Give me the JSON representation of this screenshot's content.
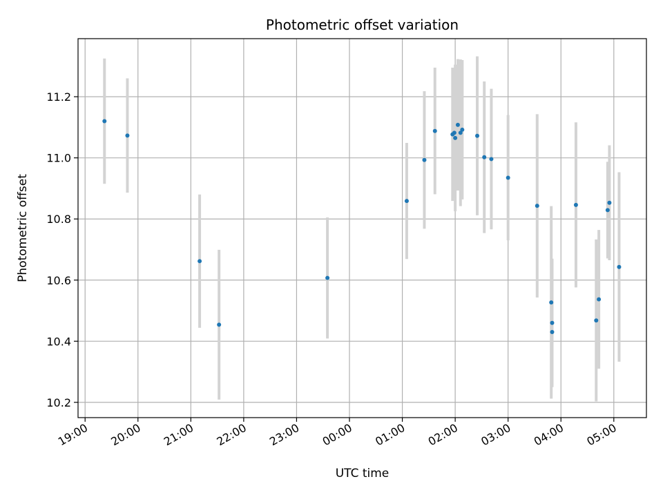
{
  "chart_data": {
    "type": "scatter",
    "title": "Photometric offset variation",
    "xlabel": "UTC time",
    "ylabel": "Photometric offset",
    "x_ticks": [
      "19:00",
      "20:00",
      "21:00",
      "22:00",
      "23:00",
      "00:00",
      "01:00",
      "02:00",
      "03:00",
      "04:00",
      "05:00"
    ],
    "x_range": [
      "18:52",
      "05:37"
    ],
    "y_ticks": [
      "10.2",
      "10.4",
      "10.6",
      "10.8",
      "11.0",
      "11.2"
    ],
    "ylim": [
      10.15,
      11.39
    ],
    "grid": true,
    "marker_color": "#1f77b4",
    "errorbar_color": "#d3d3d3",
    "points": [
      {
        "x": "19:22",
        "y": 11.12,
        "err": 0.205
      },
      {
        "x": "19:48",
        "y": 11.073,
        "err": 0.187
      },
      {
        "x": "21:10",
        "y": 10.662,
        "err": 0.218
      },
      {
        "x": "21:32",
        "y": 10.454,
        "err": 0.245
      },
      {
        "x": "23:35",
        "y": 10.607,
        "err": 0.198
      },
      {
        "x": "01:05",
        "y": 10.859,
        "err": 0.19
      },
      {
        "x": "01:25",
        "y": 10.993,
        "err": 0.225
      },
      {
        "x": "01:37",
        "y": 11.088,
        "err": 0.207
      },
      {
        "x": "01:57",
        "y": 11.077,
        "err": 0.218
      },
      {
        "x": "01:59",
        "y": 11.082,
        "err": 0.212
      },
      {
        "x": "02:00",
        "y": 11.065,
        "err": 0.24
      },
      {
        "x": "02:03",
        "y": 11.108,
        "err": 0.215
      },
      {
        "x": "02:06",
        "y": 11.082,
        "err": 0.24
      },
      {
        "x": "02:08",
        "y": 11.092,
        "err": 0.228
      },
      {
        "x": "02:25",
        "y": 11.072,
        "err": 0.26
      },
      {
        "x": "02:33",
        "y": 11.002,
        "err": 0.248
      },
      {
        "x": "02:41",
        "y": 10.996,
        "err": 0.23
      },
      {
        "x": "03:00",
        "y": 10.935,
        "err": 0.205
      },
      {
        "x": "03:33",
        "y": 10.843,
        "err": 0.3
      },
      {
        "x": "03:49",
        "y": 10.527,
        "err": 0.315
      },
      {
        "x": "03:50",
        "y": 10.46,
        "err": 0.21
      },
      {
        "x": "03:50",
        "y": 10.43,
        "err": 0.17
      },
      {
        "x": "04:17",
        "y": 10.846,
        "err": 0.27
      },
      {
        "x": "04:40",
        "y": 10.468,
        "err": 0.265
      },
      {
        "x": "04:43",
        "y": 10.537,
        "err": 0.227
      },
      {
        "x": "04:53",
        "y": 10.829,
        "err": 0.158
      },
      {
        "x": "04:55",
        "y": 10.853,
        "err": 0.188
      },
      {
        "x": "05:06",
        "y": 10.643,
        "err": 0.31
      }
    ]
  }
}
